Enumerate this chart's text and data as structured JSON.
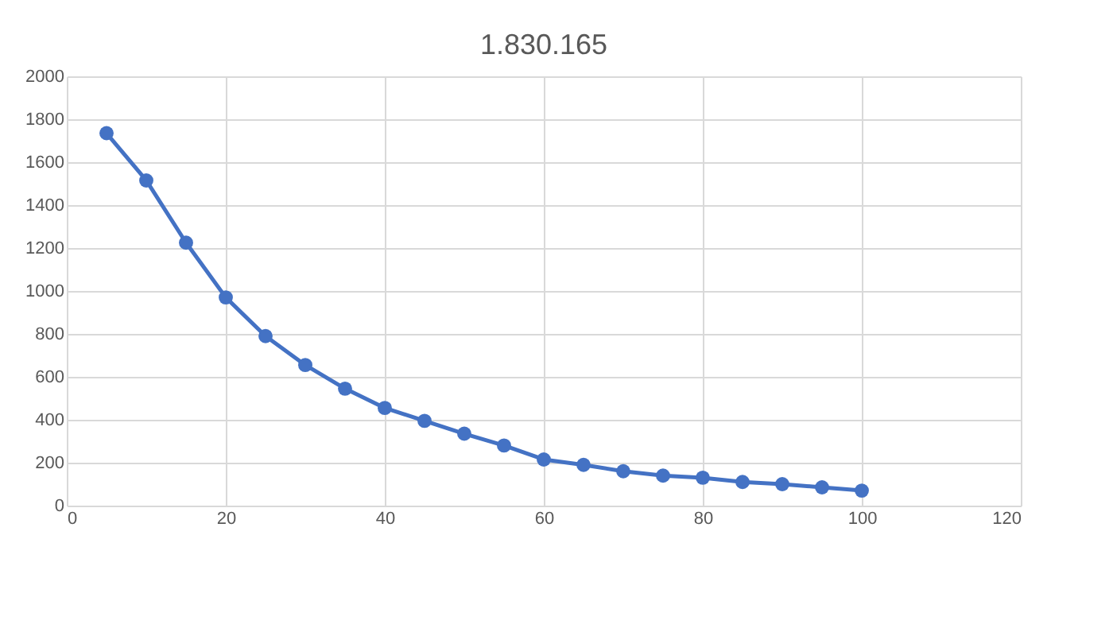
{
  "chart_data": {
    "type": "line",
    "title": "1.830.165",
    "x": [
      5,
      10,
      15,
      20,
      25,
      30,
      35,
      40,
      45,
      50,
      55,
      60,
      65,
      70,
      75,
      80,
      85,
      90,
      95,
      100
    ],
    "series": [
      {
        "color": "#4472c4",
        "values": [
          1735,
          1515,
          1225,
          970,
          790,
          655,
          545,
          455,
          395,
          335,
          280,
          215,
          190,
          160,
          140,
          130,
          110,
          100,
          85,
          70
        ]
      }
    ],
    "xlim": [
      0,
      120
    ],
    "xticks": [
      0,
      20,
      40,
      60,
      80,
      100,
      120
    ],
    "ylim": [
      0,
      2000
    ],
    "yticks": [
      0,
      200,
      400,
      600,
      800,
      1000,
      1200,
      1400,
      1600,
      1800,
      2000
    ],
    "grid": true,
    "marker": "circle",
    "line_style": "solid",
    "legend": false
  }
}
